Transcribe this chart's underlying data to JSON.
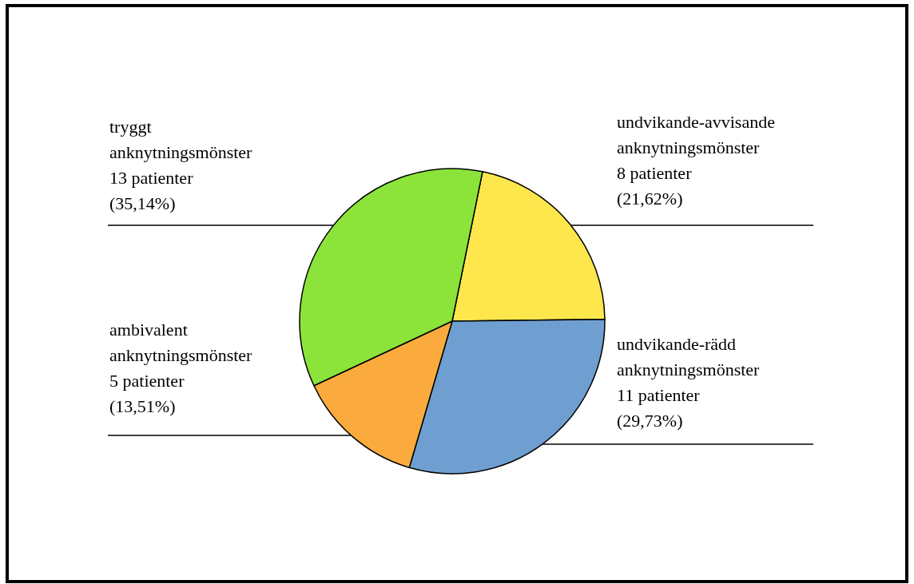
{
  "chart_data": {
    "type": "pie",
    "categories": [
      "undvikande-avvisande anknytningsmönster",
      "undvikande-rädd anknytningsmönster",
      "ambivalent anknytningsmönster",
      "tryggt anknytningsmönster"
    ],
    "values": [
      8,
      11,
      5,
      13
    ],
    "colors": [
      "#fde74c",
      "#6f9fd1",
      "#fbab3d",
      "#8ce43a"
    ],
    "value_labels": [
      "8 patienter\n(21,62%)",
      "11 patienter\n(29,73%)",
      "5 patienter\n(13,51%)",
      "13 patienter\n(35,14%)"
    ]
  }
}
